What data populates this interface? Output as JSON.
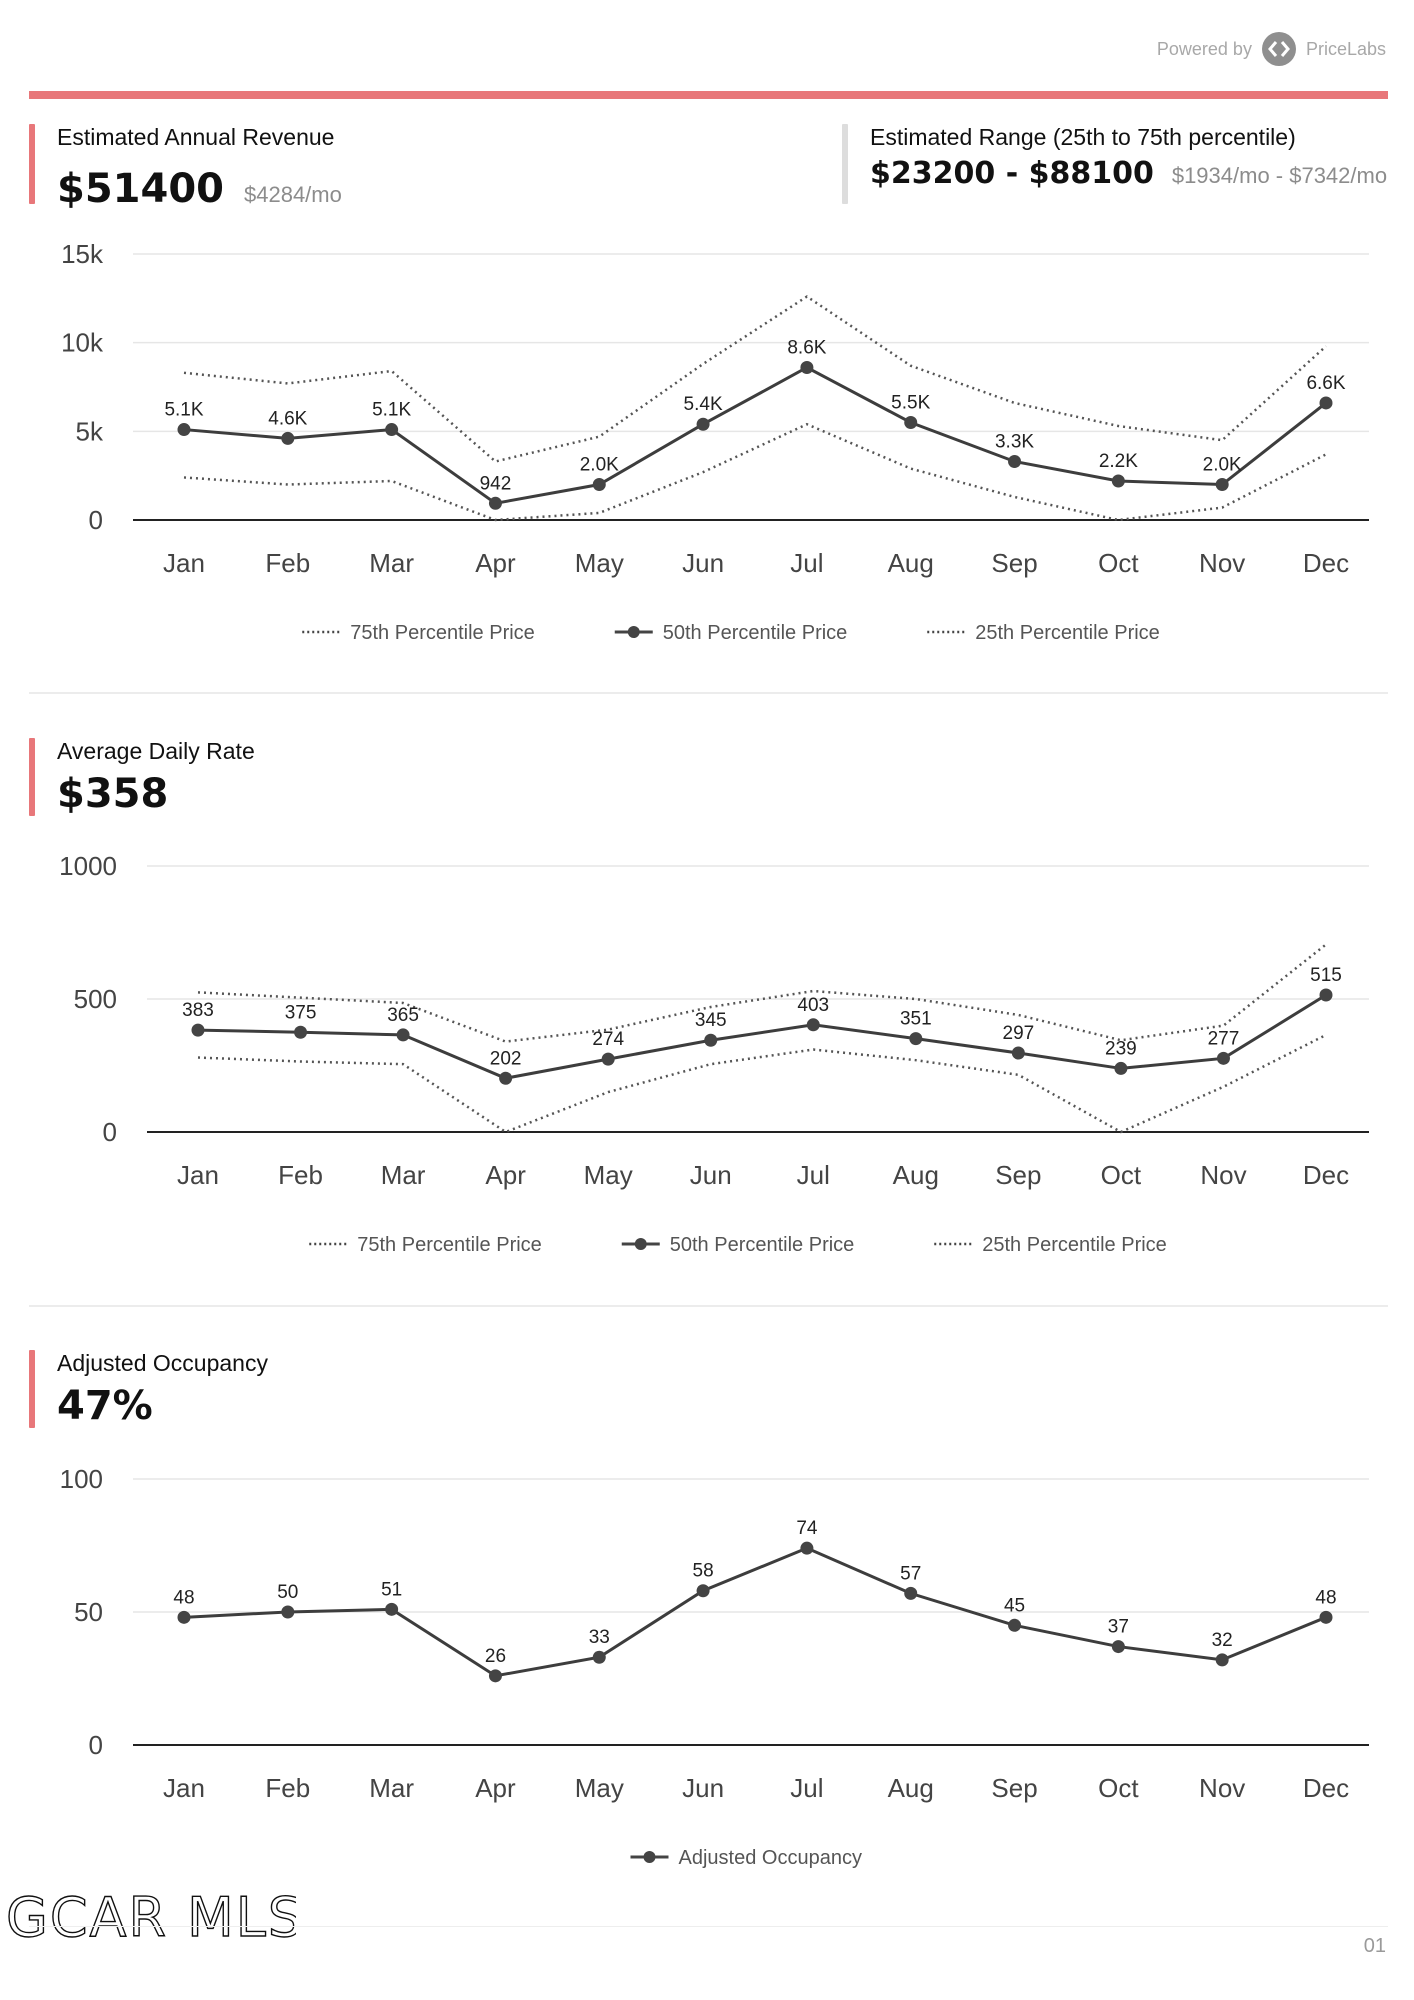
{
  "header": {
    "powered_by": "Powered by",
    "brand": "PriceLabs",
    "accent_color": "#e8777a"
  },
  "revenue": {
    "label": "Estimated Annual Revenue",
    "value": "$51400",
    "monthly": "$4284/mo",
    "range_label": "Estimated Range (25th to 75th percentile)",
    "range_value": "$23200 - $88100",
    "range_monthly": "$1934/mo - $7342/mo"
  },
  "adr": {
    "label": "Average Daily Rate",
    "value": "$358"
  },
  "occupancy": {
    "label": "Adjusted Occupancy",
    "value": "47%"
  },
  "footer": {
    "logo_text": "GCAR MLS",
    "page_number": "01"
  },
  "chart_data": [
    {
      "type": "line",
      "categories": [
        "Jan",
        "Feb",
        "Mar",
        "Apr",
        "May",
        "Jun",
        "Jul",
        "Aug",
        "Sep",
        "Oct",
        "Nov",
        "Dec"
      ],
      "ylim": [
        0,
        15000
      ],
      "yticks": [
        0,
        5000,
        10000,
        15000
      ],
      "ytick_labels": [
        "0",
        "5k",
        "10k",
        "15k"
      ],
      "grid": true,
      "legend_position": "bottom",
      "series": [
        {
          "name": "75th Percentile Price",
          "style": "dotted",
          "values": [
            8300,
            7700,
            8400,
            3300,
            4700,
            8800,
            12600,
            8700,
            6600,
            5300,
            4500,
            9800
          ]
        },
        {
          "name": "50th Percentile Price",
          "style": "solid-markers",
          "values": [
            5100,
            4600,
            5100,
            942,
            2000,
            5400,
            8600,
            5500,
            3300,
            2200,
            2000,
            6600
          ],
          "labels": [
            "5.1K",
            "4.6K",
            "5.1K",
            "942",
            "2.0K",
            "5.4K",
            "8.6K",
            "5.5K",
            "3.3K",
            "2.2K",
            "2.0K",
            "6.6K"
          ]
        },
        {
          "name": "25th Percentile Price",
          "style": "dotted",
          "values": [
            2400,
            2000,
            2200,
            0,
            400,
            2700,
            5400,
            2900,
            1300,
            0,
            700,
            3700
          ]
        }
      ]
    },
    {
      "type": "line",
      "categories": [
        "Jan",
        "Feb",
        "Mar",
        "Apr",
        "May",
        "Jun",
        "Jul",
        "Aug",
        "Sep",
        "Oct",
        "Nov",
        "Dec"
      ],
      "ylim": [
        0,
        1000
      ],
      "yticks": [
        0,
        500,
        1000
      ],
      "ytick_labels": [
        "0",
        "500",
        "1000"
      ],
      "grid": true,
      "legend_position": "bottom",
      "series": [
        {
          "name": "75th Percentile Price",
          "style": "dotted",
          "values": [
            525,
            505,
            485,
            340,
            385,
            470,
            530,
            500,
            440,
            345,
            400,
            705
          ]
        },
        {
          "name": "50th Percentile Price",
          "style": "solid-markers",
          "values": [
            383,
            375,
            365,
            202,
            274,
            345,
            403,
            351,
            297,
            239,
            277,
            515
          ],
          "labels": [
            "383",
            "375",
            "365",
            "202",
            "274",
            "345",
            "403",
            "351",
            "297",
            "239",
            "277",
            "515"
          ]
        },
        {
          "name": "25th Percentile Price",
          "style": "dotted",
          "values": [
            280,
            265,
            255,
            0,
            150,
            255,
            310,
            270,
            215,
            0,
            170,
            365
          ]
        }
      ]
    },
    {
      "type": "line",
      "categories": [
        "Jan",
        "Feb",
        "Mar",
        "Apr",
        "May",
        "Jun",
        "Jul",
        "Aug",
        "Sep",
        "Oct",
        "Nov",
        "Dec"
      ],
      "ylim": [
        0,
        100
      ],
      "yticks": [
        0,
        50,
        100
      ],
      "ytick_labels": [
        "0",
        "50",
        "100"
      ],
      "grid": true,
      "legend_position": "bottom",
      "series": [
        {
          "name": "Adjusted Occupancy",
          "style": "solid-markers",
          "values": [
            48,
            50,
            51,
            26,
            33,
            58,
            74,
            57,
            45,
            37,
            32,
            48
          ],
          "labels": [
            "48",
            "50",
            "51",
            "26",
            "33",
            "58",
            "74",
            "57",
            "45",
            "37",
            "32",
            "48"
          ]
        }
      ]
    }
  ]
}
